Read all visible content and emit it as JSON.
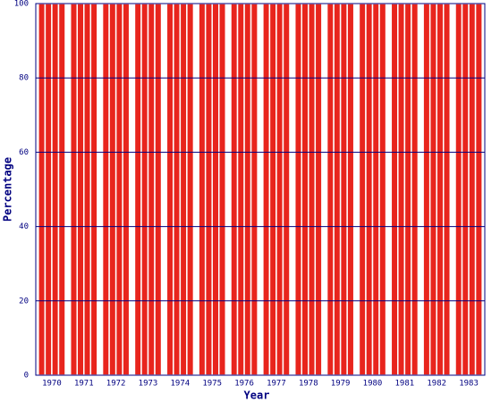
{
  "chart_data": {
    "type": "bar",
    "x_label": "Year",
    "y_label": "Percentage",
    "categories": [
      "1970",
      "1971",
      "1972",
      "1973",
      "1974",
      "1975",
      "1976",
      "1977",
      "1978",
      "1979",
      "1980",
      "1981",
      "1982",
      "1983"
    ],
    "series": [
      {
        "color": "#e8251d",
        "values": [
          100,
          100,
          100,
          100,
          100,
          100,
          100,
          100,
          100,
          100,
          100,
          100,
          100,
          100
        ]
      },
      {
        "color": "#e8251d",
        "values": [
          100,
          100,
          100,
          100,
          100,
          100,
          100,
          100,
          100,
          100,
          100,
          100,
          100,
          100
        ]
      },
      {
        "color": "#e8251d",
        "values": [
          100,
          100,
          100,
          100,
          100,
          100,
          100,
          100,
          100,
          100,
          100,
          100,
          100,
          100
        ]
      },
      {
        "color": "#e8251d",
        "values": [
          100,
          100,
          100,
          100,
          100,
          100,
          100,
          100,
          100,
          100,
          100,
          100,
          100,
          100
        ]
      }
    ],
    "ylim": [
      0,
      100
    ],
    "yticks": [
      0,
      20,
      40,
      60,
      80,
      100
    ],
    "grid": true,
    "grid_color": "#000080"
  }
}
